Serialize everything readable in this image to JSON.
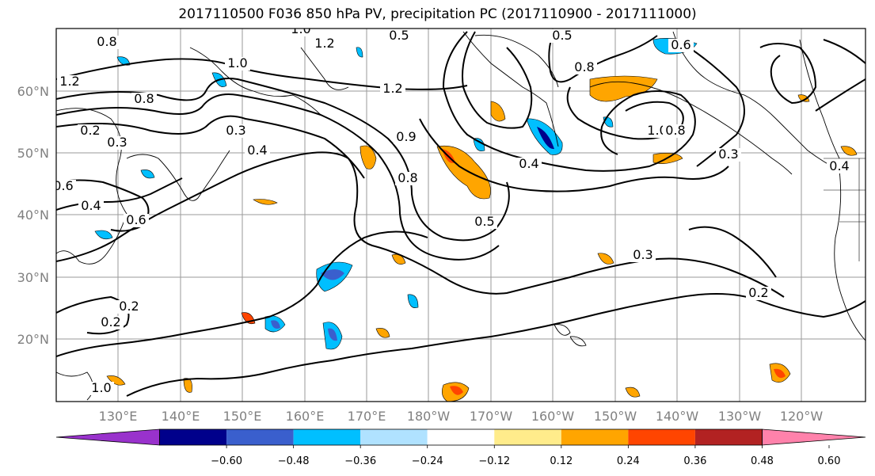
{
  "title": "2017110500 F036 850 hPa PV, precipitation PC (2017110900 - 2017111000)",
  "map": {
    "lat_labels": [
      "60°N",
      "50°N",
      "40°N",
      "30°N",
      "20°N"
    ],
    "lon_labels": [
      "130°E",
      "140°E",
      "150°E",
      "160°E",
      "170°E",
      "180°W",
      "170°W",
      "160°W",
      "150°W",
      "140°W",
      "130°W",
      "120°W"
    ],
    "gridlines": true,
    "contour_labels": [
      "0.8",
      "1.0",
      "1.2",
      "1.2",
      "1.0",
      "1.2",
      "0.5",
      "0.6",
      "0.8",
      "0.8",
      "0.5",
      "0.3",
      "0.4",
      "0.2",
      "0.3",
      "0.6",
      "0.4",
      "0.6",
      "1.0",
      "0.8",
      "0.9",
      "0.8",
      "0.5",
      "0.4",
      "0.3",
      "0.4",
      "0.3",
      "0.2",
      "0.2",
      "0.2",
      "1.0",
      "0.8",
      "0.6"
    ]
  },
  "colorbar": {
    "ticks": [
      "−0.60",
      "−0.48",
      "−0.36",
      "−0.24",
      "−0.12",
      "0.12",
      "0.24",
      "0.36",
      "0.48",
      "0.60"
    ],
    "colors": [
      "#9932cc",
      "#00008b",
      "#3a5fcd",
      "#00bfff",
      "#b0e2ff",
      "#ffffff",
      "#ffec8b",
      "#ffa500",
      "#ff4500",
      "#b22222",
      "#ff82ab"
    ],
    "extend": "both"
  }
}
